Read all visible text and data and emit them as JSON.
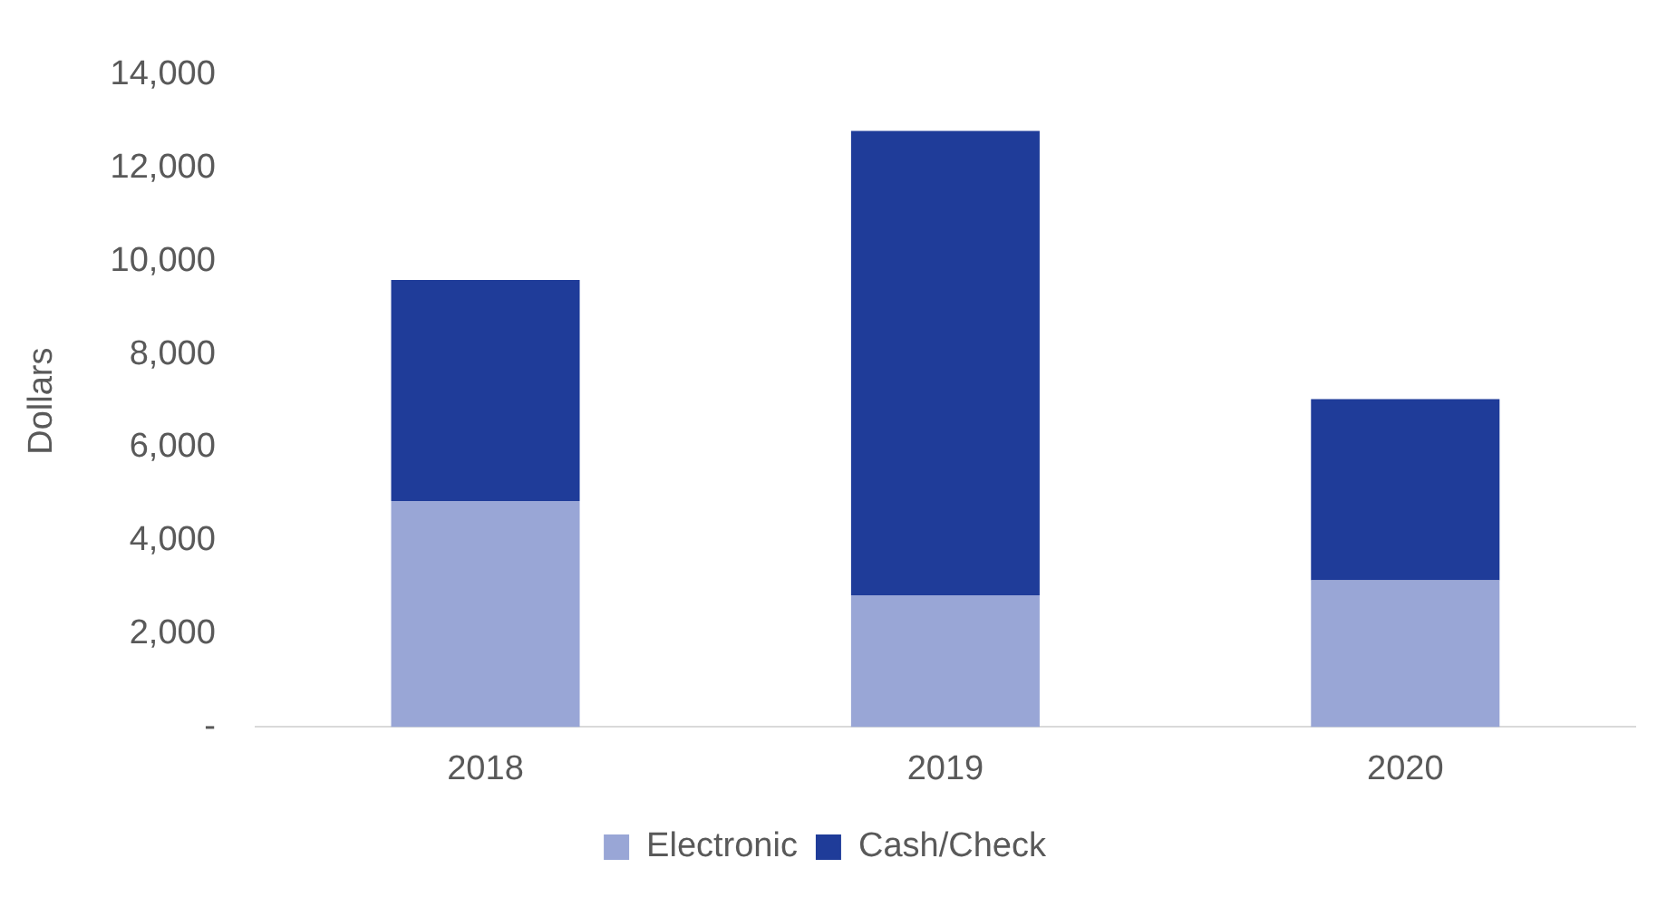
{
  "chart_data": {
    "type": "bar",
    "ylabel": "Dollars",
    "categories": [
      "2018",
      "2019",
      "2020"
    ],
    "stacked": true,
    "series": [
      {
        "name": "Electronic",
        "color": "#99a6d6",
        "values": [
          4850,
          2830,
          3150
        ]
      },
      {
        "name": "Cash/Check",
        "color": "#1f3c99",
        "values": [
          4750,
          9970,
          3890
        ]
      }
    ],
    "ylim": [
      0,
      14000
    ],
    "yticks": [
      {
        "value": 0,
        "label": "-"
      },
      {
        "value": 2000,
        "label": "2,000"
      },
      {
        "value": 4000,
        "label": "4,000"
      },
      {
        "value": 6000,
        "label": "6,000"
      },
      {
        "value": 8000,
        "label": "8,000"
      },
      {
        "value": 10000,
        "label": "10,000"
      },
      {
        "value": 12000,
        "label": "12,000"
      },
      {
        "value": 14000,
        "label": "14,000"
      }
    ],
    "grid": false,
    "legend": "bottom"
  }
}
